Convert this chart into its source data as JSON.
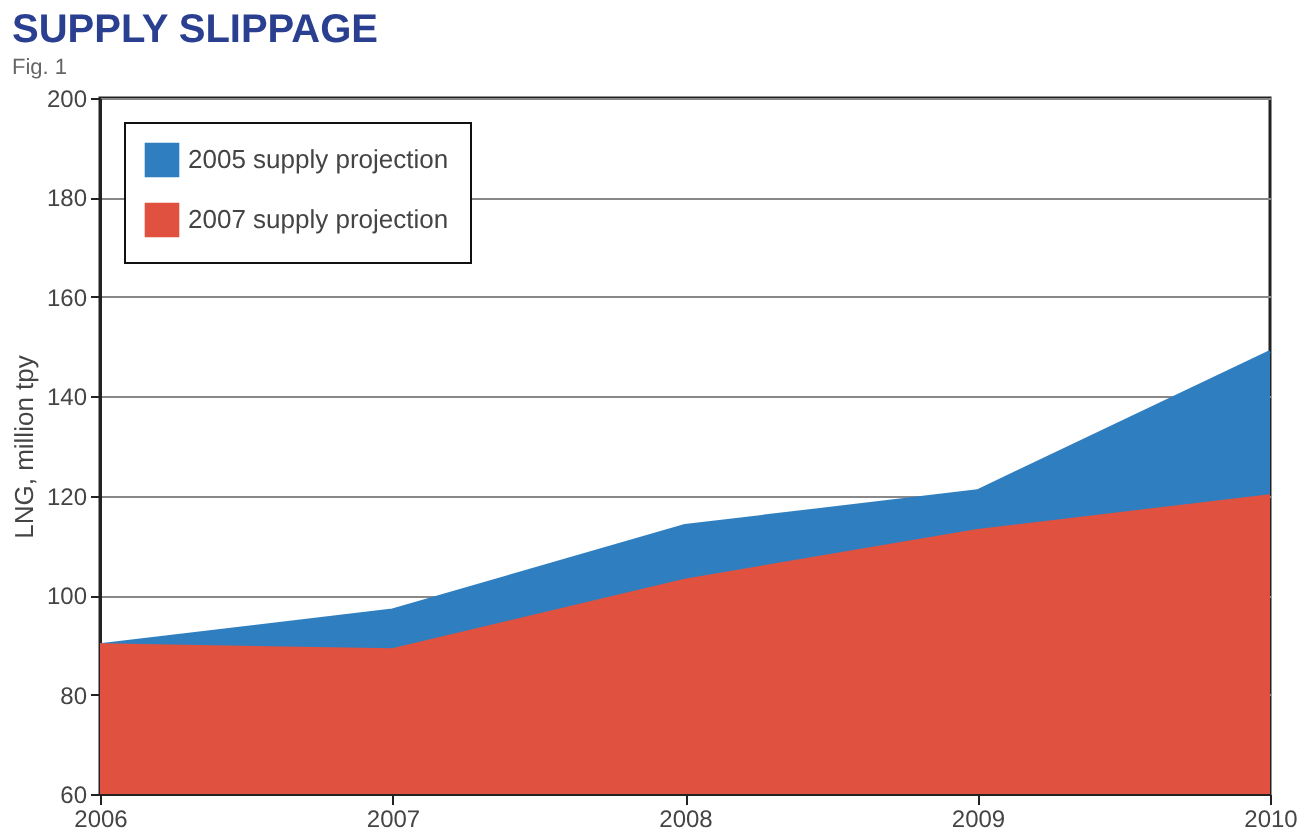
{
  "chart_data": {
    "type": "area",
    "title": "SUPPLY SLIPPAGE",
    "annotations": [
      "Fig. 1"
    ],
    "ylabel": "LNG, million tpy",
    "x": [
      2006,
      2007,
      2008,
      2009,
      2010
    ],
    "series": [
      {
        "name": "2005 supply projection",
        "color": "#2f7fc0",
        "values": [
          90,
          97,
          114,
          121,
          149
        ]
      },
      {
        "name": "2007 supply projection",
        "color": "#e0523f",
        "values": [
          90,
          89,
          103,
          113,
          120
        ]
      }
    ],
    "xlim": [
      2006,
      2010
    ],
    "xticks": [
      2006,
      2007,
      2008,
      2009,
      2010
    ],
    "ylim": [
      60,
      200
    ],
    "yticks": [
      60,
      80,
      100,
      120,
      140,
      160,
      180,
      200
    ],
    "grid": "y",
    "legend": "top left"
  }
}
